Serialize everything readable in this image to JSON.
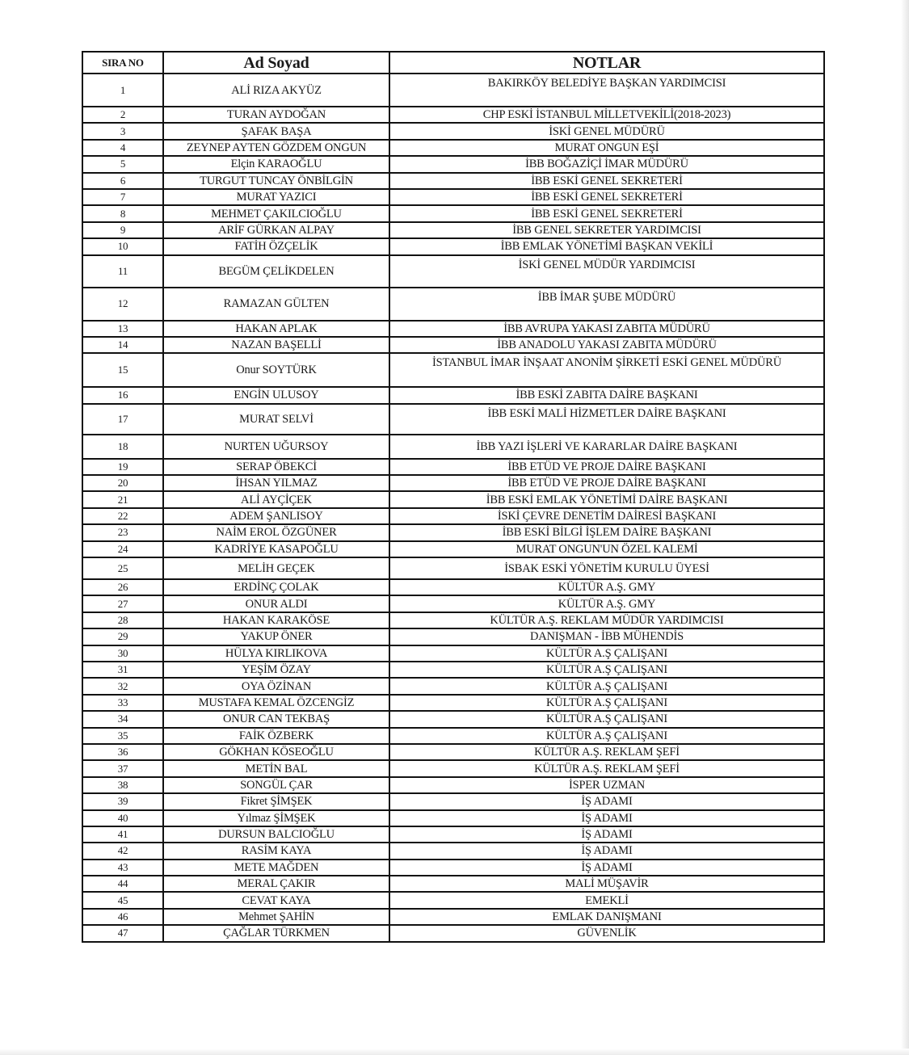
{
  "table": {
    "headers": [
      "SIRA NO",
      "Ad Soyad",
      "NOTLAR"
    ],
    "rows": [
      [
        "1",
        "ALİ RIZA AKYÜZ",
        "BAKIRKÖY BELEDİYE BAŞKAN YARDIMCISI"
      ],
      [
        "2",
        "TURAN AYDOĞAN",
        "CHP ESKİ İSTANBUL MİLLETVEKİLİ(2018-2023)"
      ],
      [
        "3",
        "ŞAFAK BAŞA",
        "İSKİ GENEL MÜDÜRÜ"
      ],
      [
        "4",
        "ZEYNEP AYTEN GÖZDEM ONGUN",
        "MURAT ONGUN EŞİ"
      ],
      [
        "5",
        "Elçin KARAOĞLU",
        "İBB BOĞAZİÇİ İMAR MÜDÜRÜ"
      ],
      [
        "6",
        "TURGUT TUNCAY ÖNBİLGİN",
        "İBB ESKİ GENEL SEKRETERİ"
      ],
      [
        "7",
        "MURAT YAZICI",
        "İBB  ESKİ GENEL SEKRETERİ"
      ],
      [
        "8",
        "MEHMET ÇAKILCIOĞLU",
        "İBB ESKİ GENEL SEKRETERİ"
      ],
      [
        "9",
        "ARİF GÜRKAN ALPAY",
        "İBB GENEL SEKRETER YARDIMCISI"
      ],
      [
        "10",
        "FATİH ÖZÇELİK",
        "İBB EMLAK YÖNETİMİ BAŞKAN VEKİLİ"
      ],
      [
        "11",
        "BEGÜM ÇELİKDELEN",
        "İSKİ GENEL MÜDÜR YARDIMCISI"
      ],
      [
        "12",
        "RAMAZAN GÜLTEN",
        "İBB İMAR ŞUBE MÜDÜRÜ"
      ],
      [
        "13",
        "HAKAN APLAK",
        "İBB AVRUPA YAKASI ZABITA MÜDÜRÜ"
      ],
      [
        "14",
        "NAZAN BAŞELLİ",
        "İBB ANADOLU YAKASI ZABITA MÜDÜRÜ"
      ],
      [
        "15",
        "Onur SOYTÜRK",
        "İSTANBUL İMAR İNŞAAT ANONİM ŞİRKETİ ESKİ GENEL MÜDÜRÜ"
      ],
      [
        "16",
        "ENGİN ULUSOY",
        "İBB ESKİ ZABITA DAİRE BAŞKANI"
      ],
      [
        "17",
        "MURAT SELVİ",
        "İBB ESKİ MALİ HİZMETLER DAİRE BAŞKANI"
      ],
      [
        "18",
        "NURTEN UĞURSOY",
        "İBB YAZI İŞLERİ VE KARARLAR DAİRE BAŞKANI"
      ],
      [
        "19",
        "SERAP ÖBEKCİ",
        "İBB ETÜD VE PROJE DAİRE BAŞKANI"
      ],
      [
        "20",
        "İHSAN YILMAZ",
        "İBB ETÜD VE PROJE DAİRE BAŞKANI"
      ],
      [
        "21",
        "ALİ AYÇİÇEK",
        "İBB ESKİ EMLAK YÖNETİMİ DAİRE BAŞKANI"
      ],
      [
        "22",
        "ADEM ŞANLISOY",
        "İSKİ ÇEVRE DENETİM DAİRESİ BAŞKANI"
      ],
      [
        "23",
        "NAİM EROL ÖZGÜNER",
        "İBB ESKİ BİLGİ İŞLEM DAİRE BAŞKANI"
      ],
      [
        "24",
        "KADRİYE KASAPOĞLU",
        "MURAT ONGUN'UN ÖZEL KALEMİ"
      ],
      [
        "25",
        "MELİH GEÇEK",
        "İSBAK ESKİ YÖNETİM KURULU ÜYESİ"
      ],
      [
        "26",
        "ERDİNÇ ÇOLAK",
        "KÜLTÜR A.Ş. GMY"
      ],
      [
        "27",
        "ONUR ALDI",
        "KÜLTÜR A.Ş. GMY"
      ],
      [
        "28",
        "HAKAN KARAKÖSE",
        "KÜLTÜR A.Ş. REKLAM MÜDÜR YARDIMCISI"
      ],
      [
        "29",
        "YAKUP ÖNER",
        "DANIŞMAN - İBB MÜHENDİS"
      ],
      [
        "30",
        "HÜLYA KIRLIKOVA",
        "KÜLTÜR A.Ş ÇALIŞANI"
      ],
      [
        "31",
        "YEŞİM ÖZAY",
        "KÜLTÜR A.Ş ÇALIŞANI"
      ],
      [
        "32",
        "OYA ÖZİNAN",
        "KÜLTÜR A.Ş ÇALIŞANI"
      ],
      [
        "33",
        "MUSTAFA KEMAL ÖZCENGİZ",
        "KÜLTÜR A.Ş ÇALIŞANI"
      ],
      [
        "34",
        "ONUR CAN TEKBAŞ",
        "KÜLTÜR A.Ş ÇALIŞANI"
      ],
      [
        "35",
        "FAİK ÖZBERK",
        "KÜLTÜR A.Ş ÇALIŞANI"
      ],
      [
        "36",
        "GÖKHAN KÖSEOĞLU",
        "KÜLTÜR A.Ş. REKLAM ŞEFİ"
      ],
      [
        "37",
        "METİN BAL",
        "KÜLTÜR A.Ş. REKLAM ŞEFİ"
      ],
      [
        "38",
        "SONGÜL ÇAR",
        "İSPER UZMAN"
      ],
      [
        "39",
        "Fikret ŞİMŞEK",
        "İŞ ADAMI"
      ],
      [
        "40",
        "Yılmaz ŞİMŞEK",
        "İŞ ADAMI"
      ],
      [
        "41",
        "DURSUN BALCIOĞLU",
        "İŞ ADAMI"
      ],
      [
        "42",
        "RASİM KAYA",
        "İŞ ADAMI"
      ],
      [
        "43",
        "METE MAĞDEN",
        "İŞ ADAMI"
      ],
      [
        "44",
        "MERAL ÇAKIR",
        "MALİ MÜŞAVİR"
      ],
      [
        "45",
        "CEVAT KAYA",
        "EMEKLİ"
      ],
      [
        "46",
        "Mehmet ŞAHİN",
        "EMLAK DANIŞMANI"
      ],
      [
        "47",
        "ÇAĞLAR TÜRKMEN",
        "GÜVENLİK"
      ]
    ]
  }
}
